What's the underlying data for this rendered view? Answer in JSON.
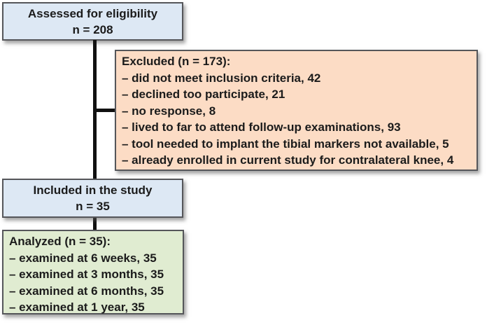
{
  "diagram_type": "study-flow-diagram",
  "colors": {
    "background": "#ffffff",
    "box_blue": "#dde8f4",
    "box_peach": "#fcdcc5",
    "box_green": "#e0ecd1",
    "box_border": "#55565a",
    "connector_line": "#111111",
    "text": "#1b1b1b"
  },
  "boxes": {
    "assessed": {
      "line1": "Assessed for eligibility",
      "line2": "n = 208"
    },
    "excluded": {
      "title": "Excluded (n = 173):",
      "items": [
        "– did not meet inclusion criteria, 42",
        "– declined too participate, 21",
        "– no response, 8",
        "– lived to far to attend follow-up examinations, 93",
        "– tool needed to implant the tibial markers not available, 5",
        "– already enrolled in current study for contralateral knee, 4"
      ]
    },
    "included": {
      "line1": "Included in the study",
      "line2": "n = 35"
    },
    "analyzed": {
      "title": "Analyzed (n = 35):",
      "items": [
        "– examined at 6 weeks, 35",
        "– examined at 3 months, 35",
        "– examined at 6 months, 35",
        "– examined at 1 year, 35"
      ]
    }
  }
}
